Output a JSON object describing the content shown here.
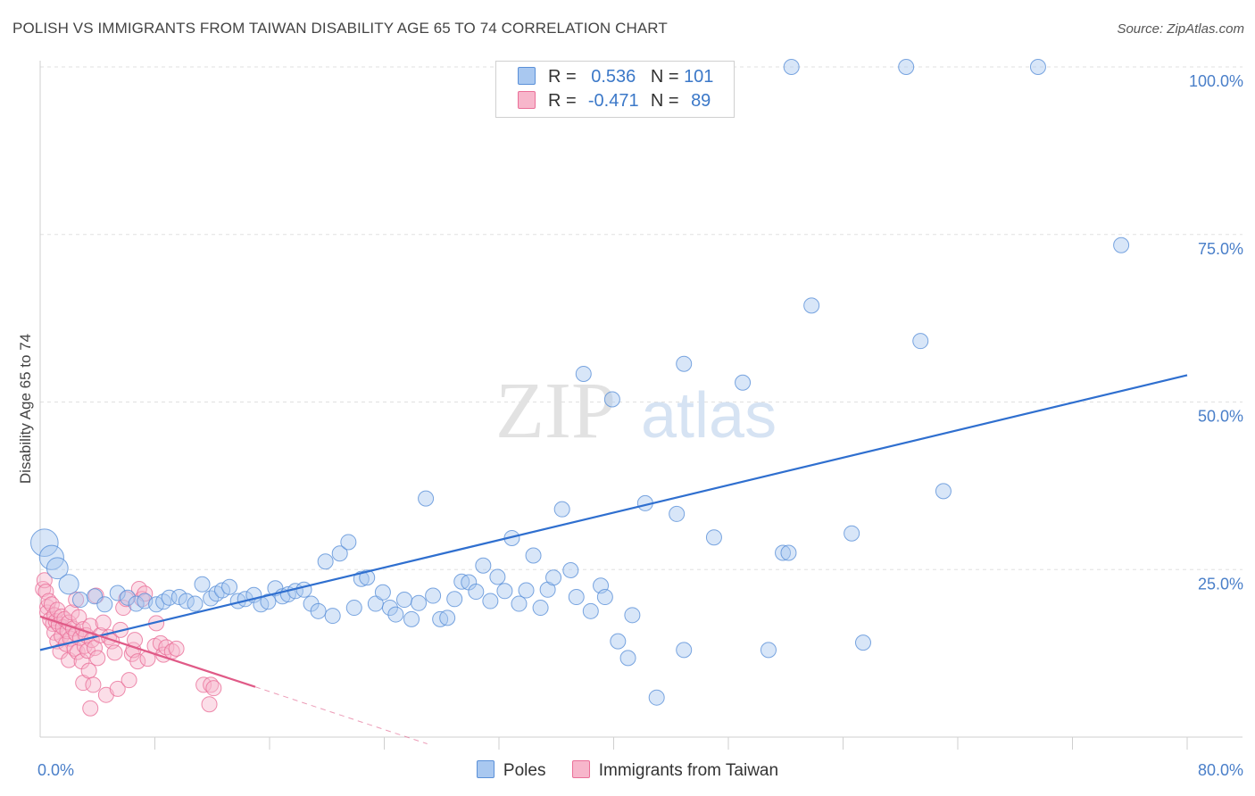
{
  "title": "POLISH VS IMMIGRANTS FROM TAIWAN DISABILITY AGE 65 TO 74 CORRELATION CHART",
  "source": "Source: ZipAtlas.com",
  "watermark": {
    "zip": "ZIP",
    "atlas": "atlas"
  },
  "legend": {
    "poles": {
      "r_label": "R =",
      "r_value": "0.536",
      "n_label": "N =",
      "n_value": "101"
    },
    "taiwan": {
      "r_label": "R =",
      "r_value": "-0.471",
      "n_label": "N =",
      "n_value": "89"
    }
  },
  "colors": {
    "poles_fill": "#a9c8f0",
    "poles_stroke": "#5a90d8",
    "poles_line": "#2f6fcf",
    "taiwan_fill": "#f7b6cb",
    "taiwan_stroke": "#ea6f98",
    "taiwan_line": "#e05a87"
  },
  "chart_data": {
    "type": "scatter",
    "title": "POLISH VS IMMIGRANTS FROM TAIWAN DISABILITY AGE 65 TO 74 CORRELATION CHART",
    "xlabel": "",
    "ylabel": "Disability Age 65 to 74",
    "xlim": [
      0,
      80
    ],
    "ylim": [
      0,
      102
    ],
    "x_tick_labels": [
      "0.0%",
      "80.0%"
    ],
    "y_ticks": [
      25,
      50,
      75,
      100
    ],
    "y_tick_labels": [
      "25.0%",
      "50.0%",
      "75.0%",
      "100.0%"
    ],
    "series": [
      {
        "name": "Poles",
        "trend": {
          "x": [
            0,
            80
          ],
          "y": [
            13.0,
            54.0
          ]
        },
        "points": [
          [
            0.3,
            29.0,
            1.8
          ],
          [
            0.8,
            26.8,
            1.6
          ],
          [
            1.2,
            25.2,
            1.4
          ],
          [
            2.0,
            22.8,
            1.3
          ],
          [
            2.8,
            20.5,
            1.0
          ],
          [
            3.8,
            21.0,
            1.0
          ],
          [
            4.5,
            19.8,
            1.0
          ],
          [
            5.4,
            21.5,
            1.0
          ],
          [
            6.1,
            20.8,
            1.0
          ],
          [
            6.7,
            19.9,
            1.0
          ],
          [
            7.3,
            20.3,
            1.0
          ],
          [
            8.1,
            19.8,
            1.0
          ],
          [
            8.6,
            20.2,
            1.0
          ],
          [
            9.0,
            20.8,
            1.0
          ],
          [
            9.7,
            20.9,
            1.0
          ],
          [
            10.2,
            20.3,
            1.0
          ],
          [
            10.8,
            19.9,
            1.0
          ],
          [
            11.3,
            22.8,
            1.0
          ],
          [
            11.9,
            20.7,
            1.0
          ],
          [
            12.3,
            21.4,
            1.0
          ],
          [
            12.7,
            21.9,
            1.0
          ],
          [
            13.2,
            22.4,
            1.0
          ],
          [
            13.8,
            20.3,
            1.0
          ],
          [
            14.3,
            20.6,
            1.0
          ],
          [
            14.9,
            21.2,
            1.0
          ],
          [
            15.4,
            19.8,
            1.0
          ],
          [
            15.9,
            20.2,
            1.0
          ],
          [
            16.4,
            22.2,
            1.0
          ],
          [
            16.9,
            21.0,
            1.0
          ],
          [
            17.3,
            21.3,
            1.0
          ],
          [
            17.8,
            21.8,
            1.0
          ],
          [
            18.4,
            22.0,
            1.0
          ],
          [
            18.9,
            19.9,
            1.0
          ],
          [
            19.4,
            18.8,
            1.0
          ],
          [
            19.9,
            26.2,
            1.0
          ],
          [
            20.4,
            18.1,
            1.0
          ],
          [
            20.9,
            27.4,
            1.0
          ],
          [
            21.5,
            29.1,
            1.0
          ],
          [
            21.9,
            19.3,
            1.0
          ],
          [
            22.4,
            23.6,
            1.0
          ],
          [
            22.8,
            23.8,
            1.0
          ],
          [
            23.4,
            19.9,
            1.0
          ],
          [
            23.9,
            21.6,
            1.0
          ],
          [
            24.4,
            19.3,
            1.0
          ],
          [
            24.8,
            18.3,
            1.0
          ],
          [
            25.4,
            20.5,
            1.0
          ],
          [
            25.9,
            17.6,
            1.0
          ],
          [
            26.4,
            20.0,
            1.0
          ],
          [
            26.9,
            35.6,
            1.0
          ],
          [
            27.4,
            21.1,
            1.0
          ],
          [
            27.9,
            17.6,
            1.0
          ],
          [
            28.4,
            17.8,
            1.0
          ],
          [
            28.9,
            20.6,
            1.0
          ],
          [
            29.4,
            23.2,
            1.0
          ],
          [
            29.9,
            23.1,
            1.0
          ],
          [
            30.4,
            21.7,
            1.0
          ],
          [
            30.9,
            25.6,
            1.0
          ],
          [
            31.4,
            20.3,
            1.0
          ],
          [
            31.9,
            23.9,
            1.0
          ],
          [
            32.4,
            21.8,
            1.0
          ],
          [
            32.9,
            29.7,
            1.0
          ],
          [
            33.4,
            19.9,
            1.0
          ],
          [
            33.9,
            21.9,
            1.0
          ],
          [
            34.4,
            27.1,
            1.0
          ],
          [
            34.9,
            19.3,
            1.0
          ],
          [
            35.4,
            22.0,
            1.0
          ],
          [
            35.8,
            23.8,
            1.0
          ],
          [
            36.4,
            34.0,
            1.0
          ],
          [
            37.0,
            24.9,
            1.0
          ],
          [
            37.4,
            20.9,
            1.0
          ],
          [
            37.9,
            54.2,
            1.0
          ],
          [
            38.4,
            18.8,
            1.0
          ],
          [
            39.1,
            22.6,
            1.0
          ],
          [
            39.4,
            20.9,
            1.0
          ],
          [
            39.9,
            50.4,
            1.0
          ],
          [
            40.3,
            14.3,
            1.0
          ],
          [
            41.0,
            11.8,
            1.0
          ],
          [
            41.3,
            18.2,
            1.0
          ],
          [
            42.2,
            34.9,
            1.0
          ],
          [
            43.0,
            5.9,
            1.0
          ],
          [
            44.9,
            13.0,
            1.0
          ],
          [
            44.4,
            33.3,
            1.0
          ],
          [
            44.9,
            55.7,
            1.0
          ],
          [
            47.0,
            29.8,
            1.0
          ],
          [
            49.0,
            52.9,
            1.0
          ],
          [
            50.8,
            13.0,
            1.0
          ],
          [
            51.8,
            27.5,
            1.0
          ],
          [
            52.2,
            27.5,
            1.0
          ],
          [
            52.4,
            100.0,
            1.0
          ],
          [
            53.8,
            64.4,
            1.0
          ],
          [
            56.6,
            30.4,
            1.0
          ],
          [
            57.4,
            14.1,
            1.0
          ],
          [
            60.4,
            100.0,
            1.0
          ],
          [
            61.4,
            59.1,
            1.0
          ],
          [
            63.0,
            36.7,
            1.0
          ],
          [
            69.6,
            100.0,
            1.0
          ],
          [
            75.4,
            73.4,
            1.0
          ]
        ]
      },
      {
        "name": "Immigrants from Taiwan",
        "trend": {
          "x": [
            0,
            15
          ],
          "y": [
            18.0,
            7.5
          ]
        },
        "trend_dashed": {
          "x": [
            15,
            27
          ],
          "y": [
            7.5,
            -1.0
          ]
        },
        "points": [
          [
            0.2,
            22.1,
            1.0
          ],
          [
            0.3,
            23.4,
            1.0
          ],
          [
            0.4,
            21.7,
            1.0
          ],
          [
            0.5,
            19.4,
            1.0
          ],
          [
            0.5,
            18.6,
            1.0
          ],
          [
            0.6,
            20.3,
            1.0
          ],
          [
            0.7,
            17.5,
            1.0
          ],
          [
            0.8,
            19.8,
            1.0
          ],
          [
            0.9,
            16.9,
            1.0
          ],
          [
            1.0,
            18.2,
            1.0
          ],
          [
            1.0,
            15.6,
            1.0
          ],
          [
            1.1,
            17.3,
            1.0
          ],
          [
            1.2,
            19.0,
            1.0
          ],
          [
            1.2,
            14.3,
            1.0
          ],
          [
            1.3,
            16.8,
            1.0
          ],
          [
            1.4,
            12.8,
            1.0
          ],
          [
            1.5,
            18.0,
            1.0
          ],
          [
            1.5,
            15.1,
            1.0
          ],
          [
            1.6,
            16.4,
            1.0
          ],
          [
            1.7,
            17.6,
            1.0
          ],
          [
            1.8,
            13.9,
            1.0
          ],
          [
            1.9,
            15.8,
            1.0
          ],
          [
            2.0,
            11.5,
            1.0
          ],
          [
            2.0,
            17.1,
            1.0
          ],
          [
            2.1,
            14.7,
            1.0
          ],
          [
            2.2,
            18.6,
            1.0
          ],
          [
            2.3,
            16.2,
            1.0
          ],
          [
            2.4,
            13.2,
            1.0
          ],
          [
            2.5,
            15.4,
            1.0
          ],
          [
            2.5,
            20.5,
            1.0
          ],
          [
            2.6,
            12.7,
            1.0
          ],
          [
            2.7,
            17.9,
            1.0
          ],
          [
            2.8,
            14.8,
            1.0
          ],
          [
            2.9,
            11.3,
            1.0
          ],
          [
            3.0,
            16.1,
            1.0
          ],
          [
            3.0,
            8.1,
            1.0
          ],
          [
            3.1,
            13.6,
            1.0
          ],
          [
            3.2,
            15.2,
            1.0
          ],
          [
            3.3,
            12.9,
            1.0
          ],
          [
            3.4,
            9.9,
            1.0
          ],
          [
            3.5,
            16.6,
            1.0
          ],
          [
            3.5,
            4.3,
            1.0
          ],
          [
            3.6,
            14.5,
            1.0
          ],
          [
            3.7,
            7.8,
            1.0
          ],
          [
            3.8,
            13.3,
            1.0
          ],
          [
            3.9,
            21.1,
            1.0
          ],
          [
            4.0,
            11.8,
            1.0
          ],
          [
            4.2,
            15.2,
            1.0
          ],
          [
            4.4,
            17.1,
            1.0
          ],
          [
            4.6,
            6.3,
            1.0
          ],
          [
            4.8,
            14.9,
            1.0
          ],
          [
            5.0,
            14.3,
            1.0
          ],
          [
            5.2,
            12.6,
            1.0
          ],
          [
            5.4,
            7.2,
            1.0
          ],
          [
            5.6,
            16.0,
            1.0
          ],
          [
            5.8,
            19.3,
            1.0
          ],
          [
            6.0,
            20.6,
            1.0
          ],
          [
            6.2,
            8.5,
            1.0
          ],
          [
            6.4,
            12.4,
            1.0
          ],
          [
            6.5,
            13.0,
            1.0
          ],
          [
            6.6,
            14.5,
            1.0
          ],
          [
            6.8,
            11.3,
            1.0
          ],
          [
            6.9,
            22.1,
            1.0
          ],
          [
            7.1,
            20.6,
            1.0
          ],
          [
            7.3,
            21.4,
            1.0
          ],
          [
            7.5,
            11.7,
            1.0
          ],
          [
            8.0,
            13.6,
            1.0
          ],
          [
            8.1,
            17.0,
            1.0
          ],
          [
            8.4,
            14.0,
            1.0
          ],
          [
            8.6,
            12.3,
            1.0
          ],
          [
            8.8,
            13.4,
            1.0
          ],
          [
            9.2,
            12.8,
            1.0
          ],
          [
            9.5,
            13.2,
            1.0
          ],
          [
            11.4,
            7.8,
            1.0
          ],
          [
            11.8,
            4.9,
            1.0
          ],
          [
            11.9,
            7.8,
            1.0
          ],
          [
            12.1,
            7.3,
            1.0
          ]
        ]
      }
    ]
  }
}
